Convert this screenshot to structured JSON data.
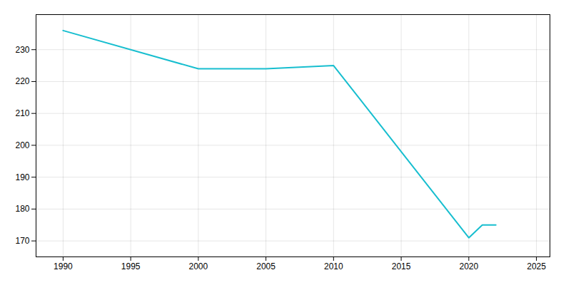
{
  "chart_data": {
    "type": "line",
    "x": [
      1990,
      2000,
      2005,
      2010,
      2020,
      2021,
      2022
    ],
    "values": [
      236,
      224,
      224,
      225,
      171,
      175,
      175
    ],
    "color": "#17becf",
    "xlim": [
      1988,
      2026
    ],
    "ylim": [
      165,
      241
    ],
    "xticks": [
      1990,
      1995,
      2000,
      2005,
      2010,
      2015,
      2020,
      2025
    ],
    "yticks": [
      170,
      180,
      190,
      200,
      210,
      220,
      230
    ],
    "grid": true
  }
}
